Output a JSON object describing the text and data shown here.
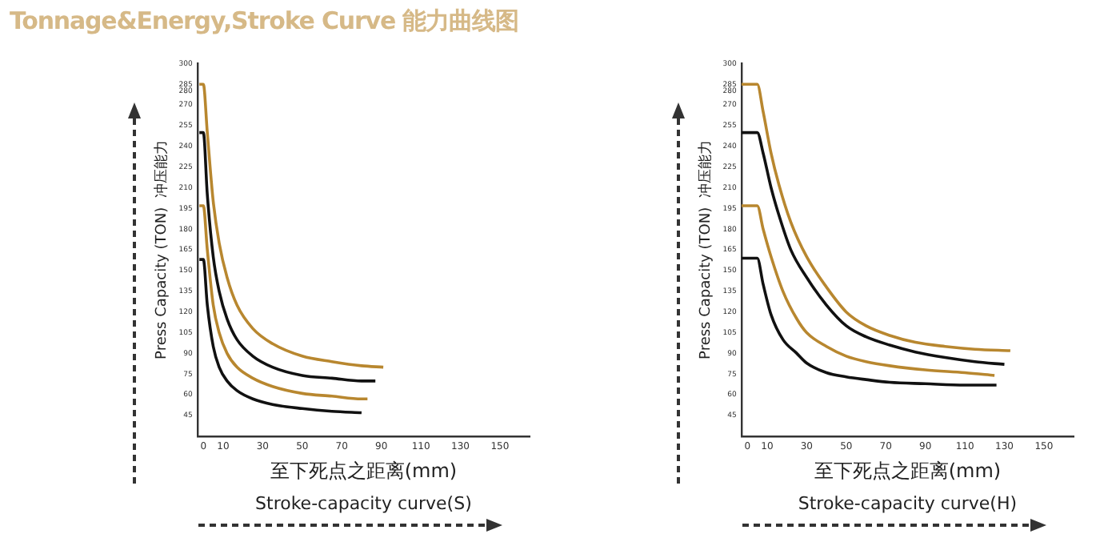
{
  "chart_data": [
    {
      "type": "line",
      "title": "Tonnage&Energy,Stroke Curve 能力曲线图",
      "xlabel": "至下死点之距离(mm)",
      "ylabel": "Press Capacity (TON)  冲压能力",
      "annotations": [
        "Stroke-capacity curve(S)"
      ],
      "xlim": [
        -3,
        165
      ],
      "ylim": [
        30,
        300
      ],
      "xticks": [
        0,
        10,
        30,
        50,
        70,
        90,
        110,
        130,
        150
      ],
      "yticks": [
        300,
        285,
        280,
        270,
        255,
        240,
        225,
        210,
        195,
        180,
        165,
        150,
        135,
        120,
        105,
        90,
        75,
        60,
        45
      ],
      "grid": false,
      "legend": false,
      "series": [
        {
          "color": "#b8872f",
          "x": [
            -2,
            0,
            2,
            5,
            8,
            12,
            17,
            25,
            35,
            50,
            65,
            80,
            91
          ],
          "values": [
            285,
            285,
            250,
            200,
            170,
            145,
            125,
            108,
            97,
            88,
            84,
            81,
            80
          ]
        },
        {
          "color": "#111111",
          "x": [
            -2,
            0,
            2,
            5,
            8,
            12,
            17,
            25,
            35,
            50,
            65,
            80,
            87
          ],
          "values": [
            250,
            250,
            205,
            160,
            135,
            115,
            100,
            88,
            80,
            74,
            72,
            70,
            70
          ]
        },
        {
          "color": "#b8872f",
          "x": [
            -2,
            0,
            2,
            5,
            8,
            12,
            17,
            25,
            35,
            50,
            65,
            80,
            83
          ],
          "values": [
            197,
            197,
            165,
            125,
            105,
            90,
            80,
            72,
            66,
            61,
            59,
            57,
            57
          ]
        },
        {
          "color": "#111111",
          "x": [
            -2,
            0,
            2,
            5,
            8,
            12,
            17,
            25,
            35,
            50,
            65,
            80
          ],
          "values": [
            158,
            158,
            125,
            95,
            80,
            70,
            63,
            57,
            53,
            50,
            48,
            47
          ]
        }
      ]
    },
    {
      "type": "line",
      "xlabel": "至下死点之距离(mm)",
      "ylabel": "Press Capacity (TON)  冲压能力",
      "annotations": [
        "Stroke-capacity curve(H)"
      ],
      "xlim": [
        -3,
        165
      ],
      "ylim": [
        30,
        300
      ],
      "xticks": [
        0,
        10,
        30,
        50,
        70,
        90,
        110,
        130,
        150
      ],
      "yticks": [
        300,
        285,
        280,
        270,
        255,
        240,
        225,
        210,
        195,
        180,
        165,
        150,
        135,
        120,
        105,
        90,
        75,
        60,
        45
      ],
      "grid": false,
      "legend": false,
      "series": [
        {
          "color": "#b8872f",
          "x": [
            -3,
            5,
            8,
            12,
            16,
            22,
            30,
            40,
            50,
            60,
            72,
            85,
            100,
            115,
            133
          ],
          "values": [
            285,
            285,
            265,
            235,
            212,
            185,
            160,
            138,
            120,
            110,
            103,
            98,
            95,
            93,
            92
          ]
        },
        {
          "color": "#111111",
          "x": [
            -3,
            5,
            8,
            12,
            16,
            22,
            30,
            40,
            50,
            60,
            72,
            85,
            100,
            115,
            130
          ],
          "values": [
            250,
            250,
            235,
            210,
            190,
            165,
            145,
            125,
            110,
            102,
            96,
            91,
            87,
            84,
            82
          ]
        },
        {
          "color": "#b8872f",
          "x": [
            -3,
            5,
            8,
            12,
            18,
            25,
            30,
            40,
            50,
            60,
            72,
            90,
            110,
            125
          ],
          "values": [
            197,
            197,
            180,
            160,
            135,
            115,
            105,
            95,
            88,
            84,
            81,
            78,
            76,
            74
          ]
        },
        {
          "color": "#111111",
          "x": [
            -3,
            5,
            8,
            12,
            18,
            25,
            30,
            40,
            50,
            60,
            72,
            90,
            110,
            126
          ],
          "values": [
            159,
            159,
            140,
            118,
            100,
            90,
            83,
            76,
            73,
            71,
            69,
            68,
            67,
            67
          ]
        }
      ]
    }
  ]
}
